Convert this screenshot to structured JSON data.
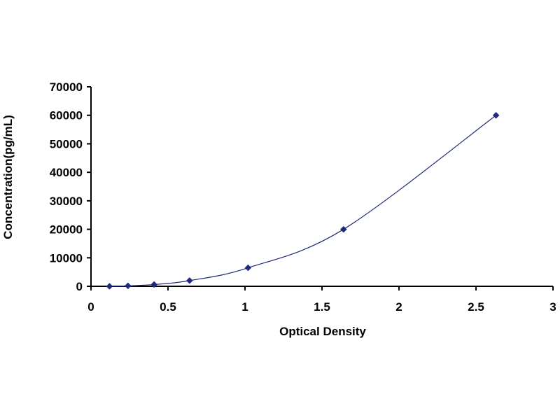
{
  "chart_data": {
    "type": "scatter",
    "title": "",
    "xlabel": "Optical Density",
    "ylabel": "Concentration(pg/mL)",
    "xlim": [
      0,
      3
    ],
    "ylim": [
      0,
      70000
    ],
    "x_ticks": [
      0,
      0.5,
      1,
      1.5,
      2,
      2.5,
      3
    ],
    "x_tick_labels": [
      "0",
      "0.5",
      "1",
      "1.5",
      "2",
      "2.5",
      "3"
    ],
    "y_ticks": [
      0,
      10000,
      20000,
      30000,
      40000,
      50000,
      60000,
      70000
    ],
    "y_tick_labels": [
      "0",
      "10000",
      "20000",
      "30000",
      "40000",
      "50000",
      "60000",
      "70000"
    ],
    "grid": false,
    "legend": "none",
    "series": [
      {
        "marker": "diamond",
        "color": "#1F2A7A",
        "line_color": "#1F2A7A",
        "fit": "smooth curve",
        "points": [
          {
            "x": 0.12,
            "y": 0
          },
          {
            "x": 0.24,
            "y": 156
          },
          {
            "x": 0.41,
            "y": 625
          },
          {
            "x": 0.64,
            "y": 2000
          },
          {
            "x": 1.02,
            "y": 6500
          },
          {
            "x": 1.64,
            "y": 20000
          },
          {
            "x": 2.63,
            "y": 60000
          }
        ]
      }
    ]
  }
}
